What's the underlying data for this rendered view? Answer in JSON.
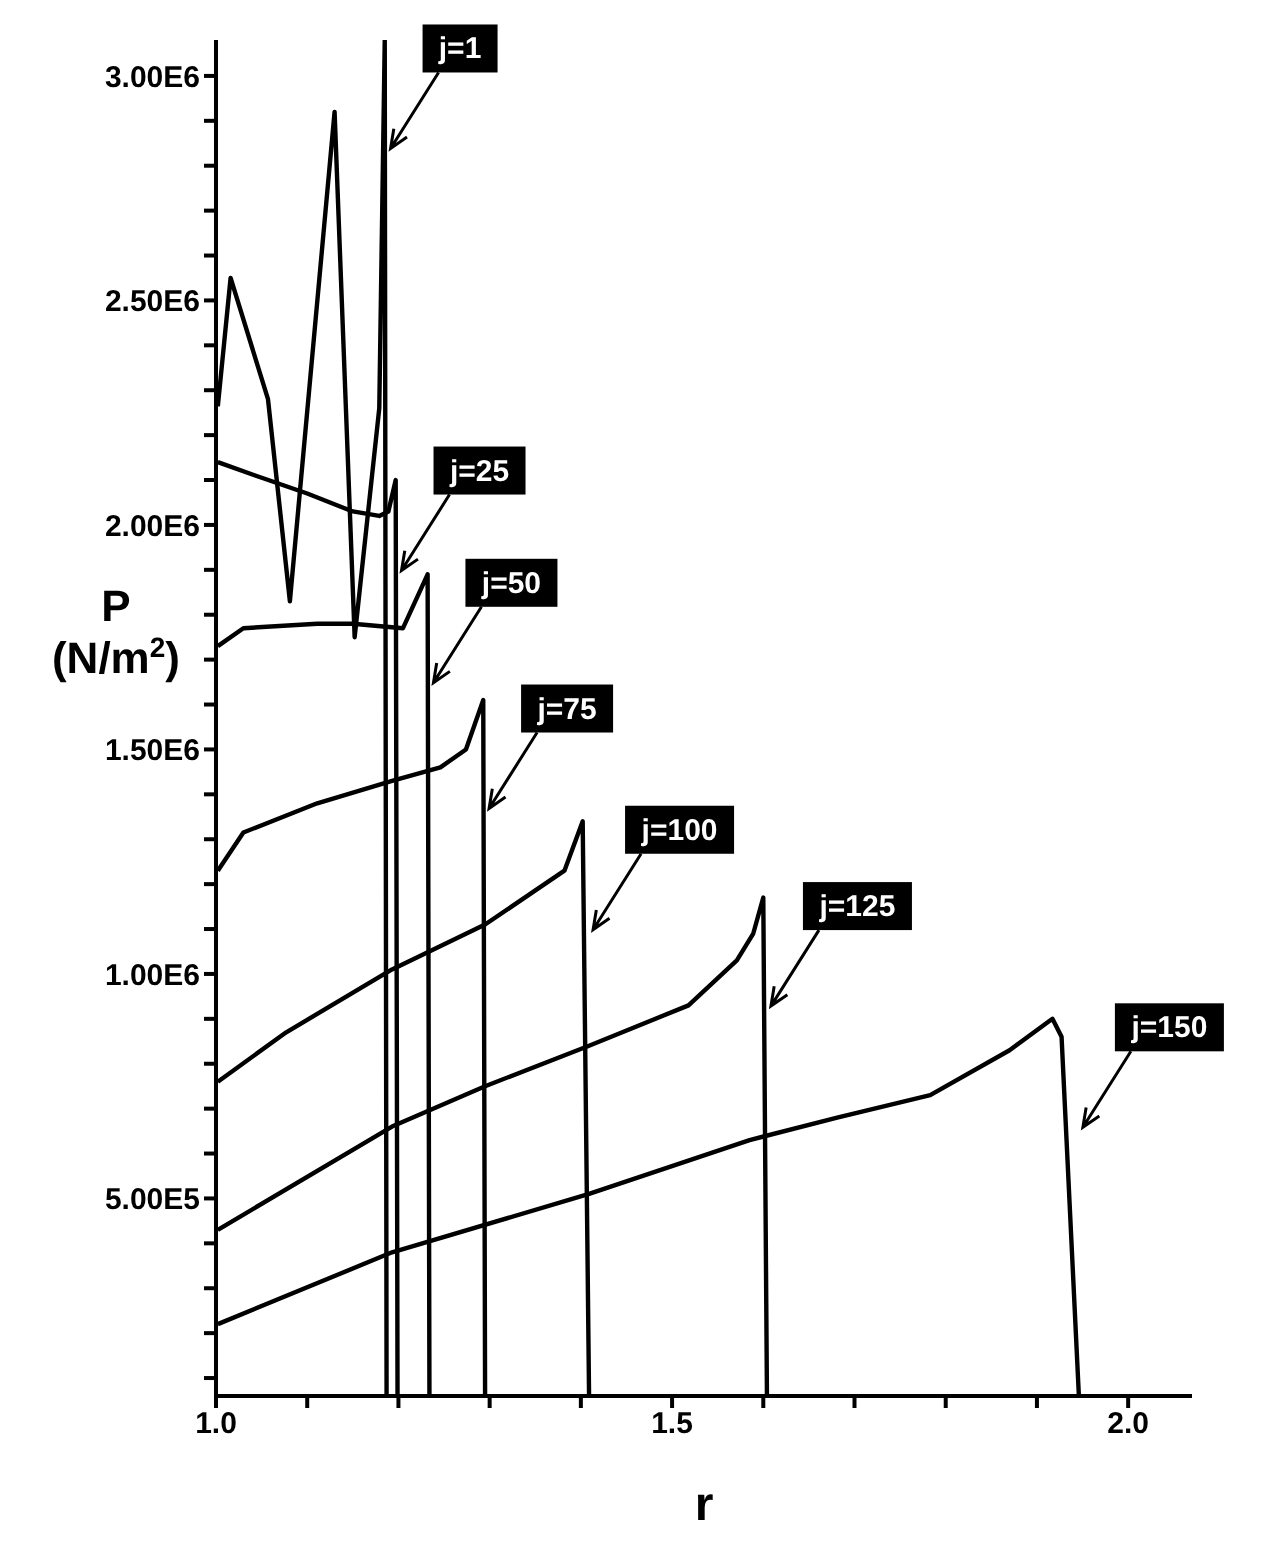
{
  "chart_data": {
    "type": "line",
    "xlabel": "r",
    "ylabel": "P (N/m$^{2}$)",
    "xlim": [
      1.0,
      2.07
    ],
    "ylim": [
      60000,
      3080000
    ],
    "xticks": [
      {
        "value": 1,
        "label": "1.0"
      },
      {
        "value": 1.1,
        "label": null
      },
      {
        "value": 1.2,
        "label": null
      },
      {
        "value": 1.3,
        "label": null
      },
      {
        "value": 1.4,
        "label": null
      },
      1.5,
      {
        "value": 1.6,
        "label": null
      },
      {
        "value": 1.7,
        "label": null
      },
      {
        "value": 1.8,
        "label": null
      },
      {
        "value": 1.9,
        "label": null
      },
      {
        "value": 2,
        "label": "2.0"
      }
    ],
    "yticks": [
      {
        "value": 100000,
        "label": null
      },
      {
        "value": 200000,
        "label": null
      },
      {
        "value": 300000,
        "label": null
      },
      {
        "value": 400000,
        "label": null
      },
      {
        "value": 500000,
        "label": "5.00E5"
      },
      {
        "value": 600000,
        "label": null
      },
      {
        "value": 700000,
        "label": null
      },
      {
        "value": 800000,
        "label": null
      },
      {
        "value": 900000,
        "label": null
      },
      {
        "value": 1000000,
        "label": "1.00E6"
      },
      {
        "value": 1100000,
        "label": null
      },
      {
        "value": 1200000,
        "label": null
      },
      {
        "value": 1300000,
        "label": null
      },
      {
        "value": 1400000,
        "label": null
      },
      {
        "value": 1500000,
        "label": "1.50E6"
      },
      {
        "value": 1600000,
        "label": null
      },
      {
        "value": 1700000,
        "label": null
      },
      {
        "value": 1800000,
        "label": null
      },
      {
        "value": 1900000,
        "label": null
      },
      {
        "value": 2000000,
        "label": "2.00E6"
      },
      {
        "value": 2100000,
        "label": null
      },
      {
        "value": 2200000,
        "label": null
      },
      {
        "value": 2300000,
        "label": null
      },
      {
        "value": 2400000,
        "label": null
      },
      {
        "value": 2500000,
        "label": "2.50E6"
      },
      {
        "value": 2600000,
        "label": null
      },
      {
        "value": 2700000,
        "label": null
      },
      {
        "value": 2800000,
        "label": null
      },
      {
        "value": 2900000,
        "label": null
      },
      {
        "value": 3000000,
        "label": "3.00E6"
      }
    ],
    "legend": false,
    "marker": "none",
    "line_style": "solid",
    "series": [
      {
        "name": "j=1",
        "color": "#000000",
        "x": [
          1.002,
          1.016,
          1.057,
          1.081,
          1.13,
          1.152,
          1.179,
          1.185,
          1.187
        ],
        "values": [
          2264000,
          2550000,
          2280000,
          1830000,
          2920000,
          1750000,
          2260000,
          3080000,
          60000
        ]
      },
      {
        "name": "j=25",
        "color": "#000000",
        "x": [
          1.002,
          1.043,
          1.1,
          1.15,
          1.179,
          1.189,
          1.197,
          1.199
        ],
        "values": [
          2140000,
          2110000,
          2070000,
          2030000,
          2020000,
          2030000,
          2100000,
          60000
        ]
      },
      {
        "name": "j=50",
        "color": "#000000",
        "x": [
          1.002,
          1.03,
          1.111,
          1.15,
          1.205,
          1.232,
          1.234
        ],
        "values": [
          1730000,
          1770000,
          1780000,
          1780000,
          1770000,
          1890000,
          60000
        ]
      },
      {
        "name": "j=75",
        "color": "#000000",
        "x": [
          1.002,
          1.03,
          1.111,
          1.193,
          1.246,
          1.274,
          1.293,
          1.295
        ],
        "values": [
          1230000,
          1315000,
          1380000,
          1430000,
          1460000,
          1500000,
          1610000,
          60000
        ]
      },
      {
        "name": "j=100",
        "color": "#000000",
        "x": [
          1.002,
          1.077,
          1.193,
          1.295,
          1.382,
          1.402,
          1.409
        ],
        "values": [
          760000,
          870000,
          1010000,
          1110000,
          1230000,
          1340000,
          60000
        ]
      },
      {
        "name": "j=125",
        "color": "#000000",
        "x": [
          1.002,
          1.193,
          1.295,
          1.409,
          1.518,
          1.571,
          1.589,
          1.6,
          1.604
        ],
        "values": [
          430000,
          660000,
          750000,
          840000,
          930000,
          1030000,
          1090000,
          1170000,
          60000
        ]
      },
      {
        "name": "j=150",
        "color": "#000000",
        "x": [
          1.002,
          1.193,
          1.409,
          1.585,
          1.681,
          1.783,
          1.87,
          1.917,
          1.927,
          1.946
        ],
        "values": [
          220000,
          380000,
          510000,
          630000,
          680000,
          730000,
          830000,
          900000,
          860000,
          60000
        ]
      }
    ]
  }
}
